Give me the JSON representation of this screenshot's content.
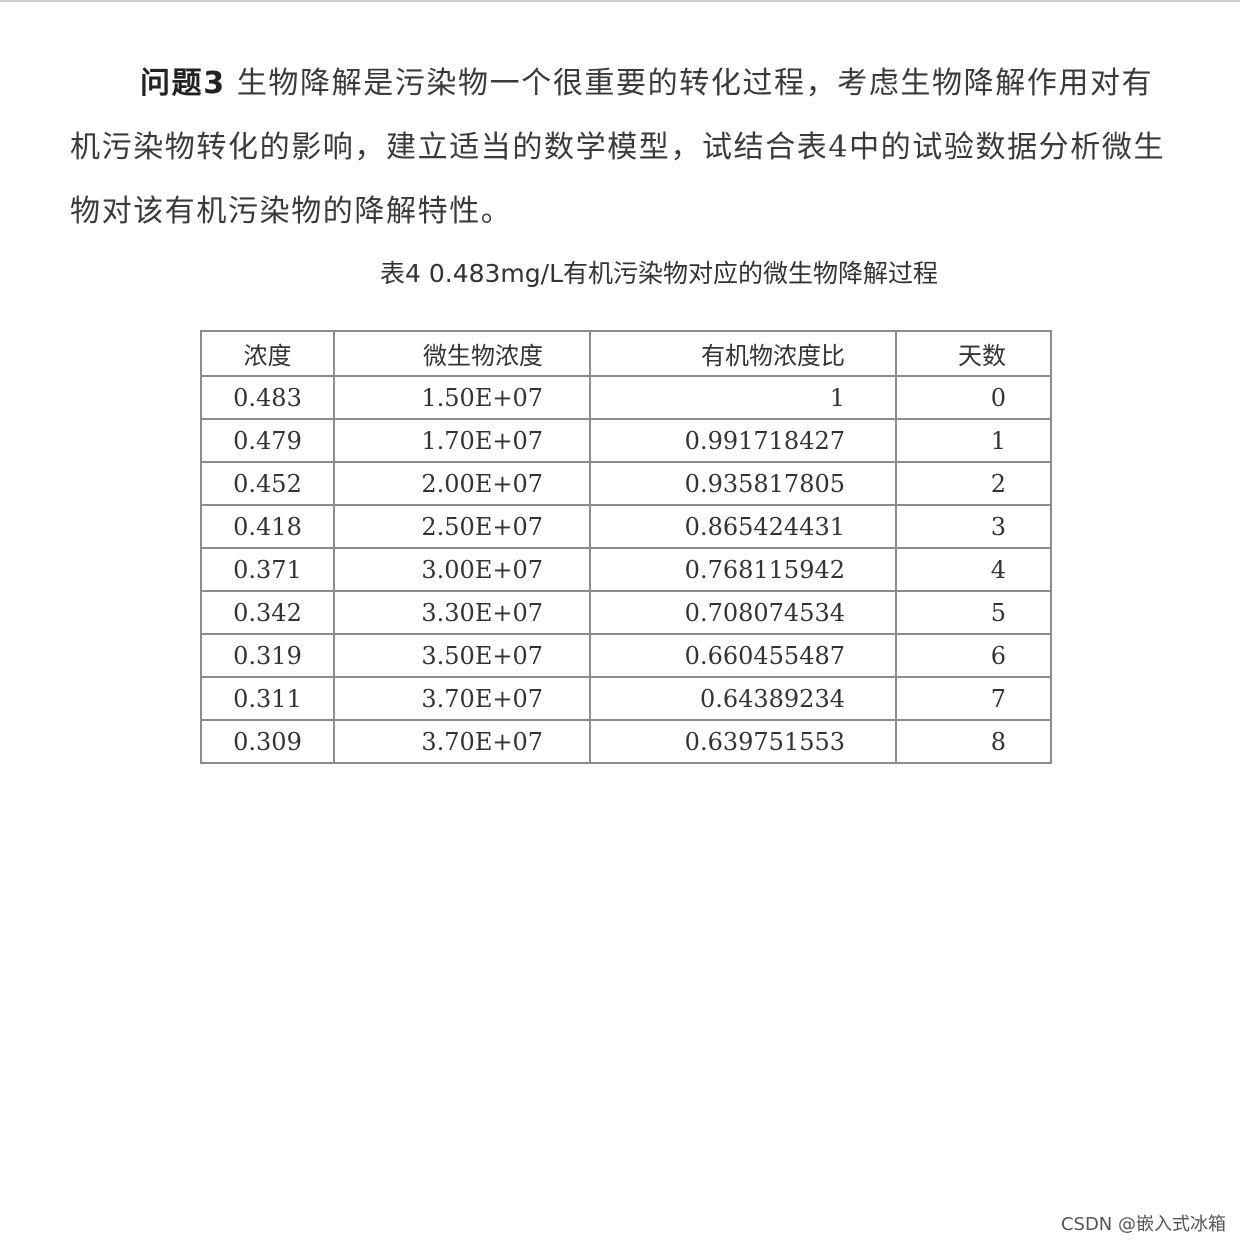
{
  "question": {
    "label": "问题3",
    "line1": "生物降解是污染物一个很重要的转化过程，考虑生物降解作用对有",
    "line2": "机污染物转化的影响，建立适当的数学模型，试结合表4中的试验数据分析微生",
    "line3": "物对该有机污染物的降解特性。"
  },
  "table": {
    "caption": "表4   0.483mg/L有机污染物对应的微生物降解过程",
    "headers": [
      "浓度",
      "微生物浓度",
      "有机物浓度比",
      "天数"
    ],
    "rows": [
      [
        "0.483",
        "1.50E+07",
        "1",
        "0"
      ],
      [
        "0.479",
        "1.70E+07",
        "0.991718427",
        "1"
      ],
      [
        "0.452",
        "2.00E+07",
        "0.935817805",
        "2"
      ],
      [
        "0.418",
        "2.50E+07",
        "0.865424431",
        "3"
      ],
      [
        "0.371",
        "3.00E+07",
        "0.768115942",
        "4"
      ],
      [
        "0.342",
        "3.30E+07",
        "0.708074534",
        "5"
      ],
      [
        "0.319",
        "3.50E+07",
        "0.660455487",
        "6"
      ],
      [
        "0.311",
        "3.70E+07",
        "0.64389234",
        "7"
      ],
      [
        "0.309",
        "3.70E+07",
        "0.639751553",
        "8"
      ]
    ]
  },
  "watermark": "CSDN @嵌入式冰箱"
}
